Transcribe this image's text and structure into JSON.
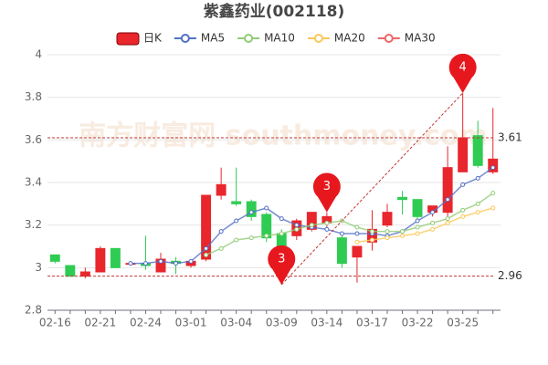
{
  "chart_data": {
    "type": "candlestick",
    "title": "紫鑫药业(002118)",
    "watermark": "南方财富网 southmoney.com",
    "categories": [
      "02-16",
      null,
      null,
      "02-21",
      null,
      null,
      "02-24",
      null,
      null,
      "03-01",
      null,
      null,
      "03-04",
      null,
      null,
      "03-09",
      null,
      null,
      "03-14",
      null,
      null,
      "03-17",
      null,
      null,
      "03-22",
      null,
      null,
      "03-25",
      null,
      null
    ],
    "candles": {
      "name": "日K",
      "up_color": "#e8262c",
      "down_color": "#2ecc52",
      "open": [
        3.06,
        3.01,
        2.96,
        2.98,
        3.09,
        3.02,
        3.02,
        2.98,
        3.03,
        3.01,
        3.04,
        3.34,
        3.31,
        3.31,
        3.25,
        3.16,
        3.15,
        3.18,
        3.21,
        3.14,
        3.05,
        3.12,
        3.2,
        3.33,
        3.32,
        3.26,
        3.26,
        3.45,
        3.62,
        3.45
      ],
      "high": [
        3.06,
        3.01,
        3.0,
        3.1,
        3.09,
        3.03,
        3.15,
        3.07,
        3.05,
        3.04,
        3.34,
        3.47,
        3.47,
        3.32,
        3.26,
        3.18,
        3.23,
        3.26,
        3.26,
        3.16,
        3.1,
        3.27,
        3.3,
        3.36,
        3.32,
        3.29,
        3.57,
        3.82,
        3.69,
        3.75
      ],
      "low": [
        3.02,
        2.96,
        2.95,
        2.98,
        3.0,
        3.01,
        2.99,
        2.98,
        2.97,
        3.0,
        3.03,
        3.32,
        3.29,
        3.22,
        3.12,
        2.92,
        3.13,
        3.17,
        3.19,
        3.0,
        2.93,
        3.08,
        3.19,
        3.25,
        3.23,
        3.24,
        3.24,
        3.45,
        3.47,
        3.44
      ],
      "close": [
        3.03,
        2.96,
        2.98,
        3.09,
        3.0,
        3.02,
        3.01,
        3.04,
        3.02,
        3.03,
        3.34,
        3.39,
        3.3,
        3.24,
        3.14,
        3.1,
        3.22,
        3.26,
        3.24,
        3.02,
        3.1,
        3.18,
        3.26,
        3.32,
        3.24,
        3.29,
        3.47,
        3.61,
        3.48,
        3.51
      ]
    },
    "series": [
      {
        "name": "MA5",
        "color": "#5470c6",
        "values": [
          null,
          null,
          null,
          null,
          null,
          3.02,
          3.02,
          3.03,
          3.02,
          3.03,
          3.09,
          3.17,
          3.22,
          3.26,
          3.28,
          3.23,
          3.2,
          3.19,
          3.18,
          3.16,
          3.16,
          3.16,
          3.15,
          3.17,
          3.22,
          3.26,
          3.32,
          3.39,
          3.42,
          3.47
        ]
      },
      {
        "name": "MA10",
        "color": "#91cc75",
        "values": [
          null,
          null,
          null,
          null,
          null,
          null,
          null,
          null,
          null,
          null,
          3.06,
          3.09,
          3.13,
          3.14,
          3.15,
          3.16,
          3.18,
          3.2,
          3.21,
          3.22,
          3.19,
          3.17,
          3.17,
          3.17,
          3.19,
          3.21,
          3.23,
          3.27,
          3.3,
          3.35
        ]
      },
      {
        "name": "MA20",
        "color": "#fac858",
        "values": [
          null,
          null,
          null,
          null,
          null,
          null,
          null,
          null,
          null,
          null,
          null,
          null,
          null,
          null,
          null,
          null,
          null,
          null,
          null,
          null,
          3.12,
          3.13,
          3.14,
          3.15,
          3.16,
          3.18,
          3.21,
          3.24,
          3.26,
          3.28
        ]
      },
      {
        "name": "MA30",
        "color": "#ee6666",
        "values": [
          null,
          null,
          null,
          null,
          null,
          null,
          null,
          null,
          null,
          null,
          null,
          null,
          null,
          null,
          null,
          null,
          null,
          null,
          null,
          null,
          null,
          null,
          null,
          null,
          null,
          null,
          null,
          null,
          null,
          null
        ]
      }
    ],
    "ylim": [
      2.8,
      4
    ],
    "yticks": [
      2.8,
      3,
      3.2,
      3.4,
      3.6,
      3.8,
      4
    ],
    "grid": true,
    "hlines": [
      3.61,
      2.96
    ],
    "annotations": [
      {
        "label": "4",
        "x": 27,
        "y": 3.82
      },
      {
        "label": "3",
        "x": 15,
        "y": 2.92
      },
      {
        "label": "3",
        "x": 18,
        "y": 3.26
      }
    ]
  }
}
